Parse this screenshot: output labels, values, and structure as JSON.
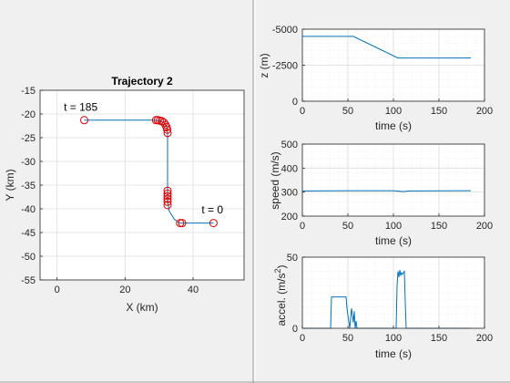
{
  "chart_data": [
    {
      "id": "trajectory",
      "type": "line",
      "title": "Trajectory 2",
      "xlabel": "X (km)",
      "ylabel": "Y (km)",
      "xlim": [
        -5,
        55
      ],
      "ylim": [
        -55,
        -15
      ],
      "xticks": [
        0,
        20,
        40
      ],
      "yticks": [
        -15,
        -20,
        -25,
        -30,
        -35,
        -40,
        -45,
        -50,
        -55
      ],
      "grid": true,
      "line_color": "#0072bd",
      "marker_color": "#e00000",
      "series": [
        {
          "points": [
            [
              46,
              -43
            ],
            [
              38,
              -43
            ],
            [
              36,
              -43
            ],
            [
              34.5,
              -42.2
            ],
            [
              33,
              -40.5
            ],
            [
              32.5,
              -38.5
            ],
            [
              32.5,
              -36
            ],
            [
              32.5,
              -30
            ],
            [
              32.5,
              -24
            ],
            [
              32.2,
              -22.6
            ],
            [
              31.4,
              -21.8
            ],
            [
              30,
              -21.4
            ],
            [
              28,
              -21.3
            ],
            [
              8,
              -21.3
            ]
          ]
        }
      ],
      "markers": [
        [
          46,
          -43
        ],
        [
          36.8,
          -43
        ],
        [
          36.2,
          -43
        ],
        [
          32.5,
          -39.2
        ],
        [
          32.5,
          -38.5
        ],
        [
          32.5,
          -37.9
        ],
        [
          32.5,
          -37.3
        ],
        [
          32.5,
          -36.8
        ],
        [
          32.5,
          -36.2
        ],
        [
          32.5,
          -24
        ],
        [
          32.4,
          -23.3
        ],
        [
          32.2,
          -22.8
        ],
        [
          31.9,
          -22.3
        ],
        [
          31.4,
          -21.8
        ],
        [
          30.8,
          -21.5
        ],
        [
          30.2,
          -21.4
        ],
        [
          29.6,
          -21.3
        ],
        [
          29.1,
          -21.3
        ],
        [
          8,
          -21.3
        ]
      ],
      "annotations": [
        {
          "text": "t = 185",
          "x": 2,
          "y": -19.3
        },
        {
          "text": "t = 0",
          "x": 42.5,
          "y": -41
        }
      ]
    },
    {
      "id": "altitude",
      "type": "line",
      "xlabel": "time (s)",
      "ylabel": "z (m)",
      "xlim": [
        0,
        200
      ],
      "ylim": [
        0,
        -5000
      ],
      "xticks": [
        0,
        50,
        100,
        150,
        200
      ],
      "yticks": [
        -5000,
        -2500,
        0
      ],
      "ytick_labels": [
        "-5000",
        "-2500",
        "0"
      ],
      "grid": true,
      "series": [
        {
          "x": [
            0,
            56,
            105,
            185
          ],
          "y": [
            -4500,
            -4500,
            -3000,
            -3000
          ]
        }
      ]
    },
    {
      "id": "speed",
      "type": "line",
      "xlabel": "time (s)",
      "ylabel": "speed (m/s)",
      "xlim": [
        0,
        200
      ],
      "ylim": [
        200,
        500
      ],
      "xticks": [
        0,
        50,
        100,
        150,
        200
      ],
      "yticks": [
        200,
        300,
        400,
        500
      ],
      "grid": true,
      "series": [
        {
          "x": [
            0,
            55,
            100,
            106,
            110,
            118,
            185
          ],
          "y": [
            305,
            306,
            306,
            304,
            302,
            305,
            306
          ]
        }
      ]
    },
    {
      "id": "acceleration",
      "type": "line",
      "xlabel": "time (s)",
      "ylabel": "accel. (m/s",
      "ylabel_sup": "2",
      "ylabel_end": ")",
      "xlim": [
        0,
        200
      ],
      "ylim": [
        0,
        50
      ],
      "xticks": [
        0,
        50,
        100,
        150,
        200
      ],
      "yticks": [
        0,
        50
      ],
      "grid": true,
      "series": [
        {
          "x": [
            0,
            31,
            32,
            48,
            49,
            52,
            54,
            56,
            57,
            58,
            59,
            60,
            61,
            62,
            103,
            104,
            105,
            106,
            107,
            108,
            109,
            110,
            111,
            112,
            113,
            114,
            185
          ],
          "y": [
            0,
            0,
            22,
            22,
            14,
            0,
            14,
            4,
            12,
            0,
            5,
            0,
            0,
            0,
            0,
            30,
            40,
            36,
            41,
            37,
            39,
            38,
            39,
            40,
            18,
            0,
            0
          ]
        }
      ]
    }
  ]
}
